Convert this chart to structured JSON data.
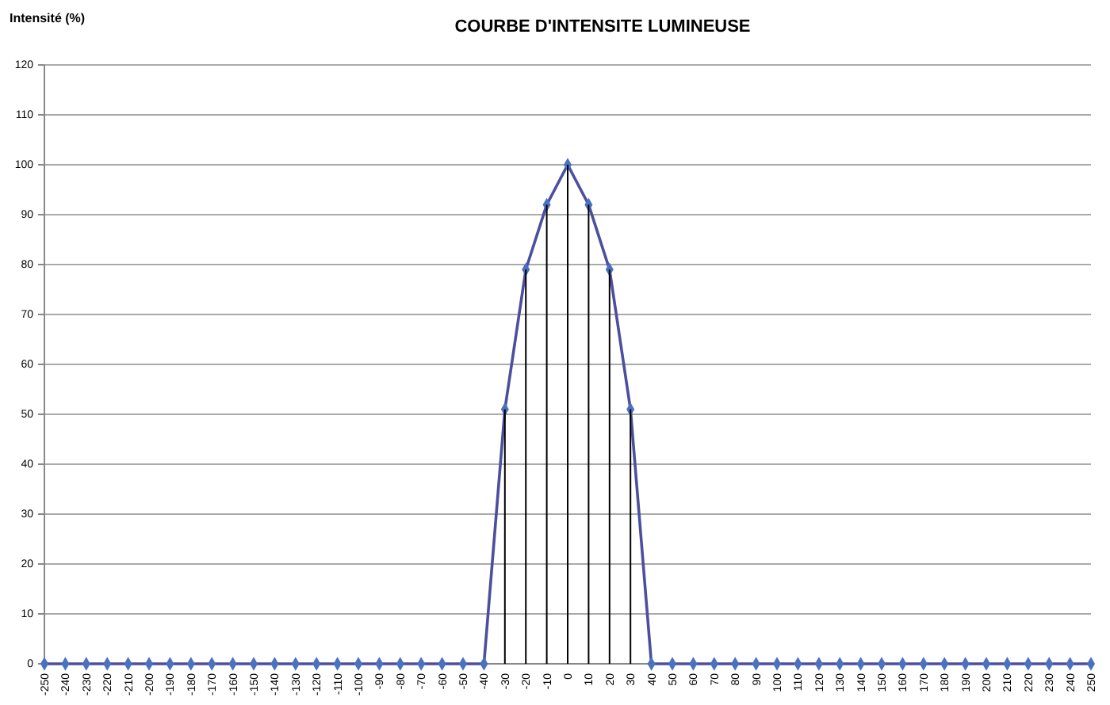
{
  "chart_data": {
    "type": "line",
    "title": "COURBE D'INTENSITE LUMINEUSE",
    "ylabel": "Intensité (%)",
    "categories": [
      "-250",
      "-240",
      "-230",
      "-220",
      "-210",
      "-200",
      "-190",
      "-180",
      "-170",
      "-160",
      "-150",
      "-140",
      "-130",
      "-120",
      "-110",
      "-100",
      "-90",
      "-80",
      "-70",
      "-60",
      "-50",
      "-40",
      "-30",
      "-20",
      "-10",
      "0",
      "10",
      "20",
      "30",
      "40",
      "50",
      "60",
      "70",
      "80",
      "90",
      "100",
      "110",
      "120",
      "130",
      "140",
      "150",
      "160",
      "170",
      "180",
      "190",
      "200",
      "210",
      "220",
      "230",
      "240",
      "250"
    ],
    "series": [
      {
        "type": "bar",
        "color": "#000000",
        "values": [
          null,
          null,
          null,
          null,
          null,
          null,
          null,
          null,
          null,
          null,
          null,
          null,
          null,
          null,
          null,
          null,
          null,
          null,
          null,
          null,
          null,
          null,
          51,
          79,
          92,
          100,
          92,
          79,
          51,
          null,
          null,
          null,
          null,
          null,
          null,
          null,
          null,
          null,
          null,
          null,
          null,
          null,
          null,
          null,
          null,
          null,
          null,
          null,
          null,
          null,
          null
        ]
      },
      {
        "color": "#4b4f9e",
        "values": [
          0,
          0,
          0,
          0,
          0,
          0,
          0,
          0,
          0,
          0,
          0,
          0,
          0,
          0,
          0,
          0,
          0,
          0,
          0,
          0,
          0,
          0,
          51,
          79,
          92,
          100,
          92,
          79,
          51,
          0,
          0,
          0,
          0,
          0,
          0,
          0,
          0,
          0,
          0,
          0,
          0,
          0,
          0,
          0,
          0,
          0,
          0,
          0,
          0,
          0,
          0
        ]
      }
    ],
    "ylim": [
      0,
      120
    ],
    "yticks": [
      0,
      10,
      20,
      30,
      40,
      50,
      60,
      70,
      80,
      90,
      100,
      110,
      120
    ],
    "grid": "y",
    "marker": "diamond",
    "line_style": "solid"
  }
}
